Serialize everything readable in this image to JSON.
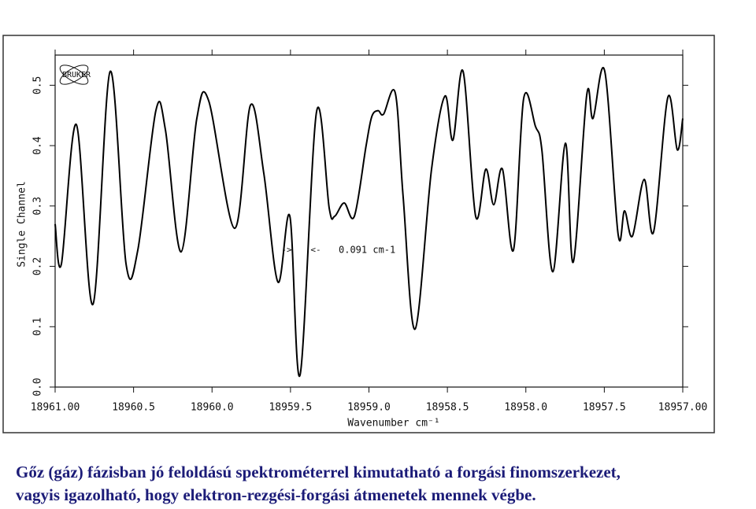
{
  "chart_data": {
    "type": "line",
    "logo_text": "BRUKER",
    "x_label": "Wavenumber cm⁻¹",
    "y_label": "Single Channel",
    "annotation": "0.091 cm-1",
    "annotation_arrows": [
      "->",
      "<-"
    ],
    "xlim": [
      18961,
      18957
    ],
    "ylim": [
      0,
      0.55
    ],
    "xticks": [
      {
        "value": 18961,
        "label": "18961.00"
      },
      18960.5,
      {
        "value": 18960,
        "label": "18960.0"
      },
      18959.5,
      {
        "value": 18959,
        "label": "18959.0"
      },
      18958.5,
      {
        "value": 18958,
        "label": "18958.0"
      },
      18957.5,
      {
        "value": 18957,
        "label": "18957.00"
      }
    ],
    "yticks": [
      {
        "value": 0,
        "label": "0.0"
      },
      0.1,
      0.2,
      0.3,
      0.4,
      0.5
    ],
    "x": [
      18961.0,
      18960.96,
      18960.865,
      18960.759,
      18960.649,
      18960.548,
      18960.473,
      18960.358,
      18960.297,
      18960.197,
      18960.097,
      18960.021,
      18959.856,
      18959.755,
      18959.67,
      18959.58,
      18959.504,
      18959.439,
      18959.334,
      18959.253,
      18959.218,
      18959.158,
      18959.093,
      18959.018,
      18958.982,
      18958.942,
      18958.907,
      18958.832,
      18958.782,
      18958.706,
      18958.601,
      18958.516,
      18958.465,
      18958.4,
      18958.32,
      18958.255,
      18958.205,
      18958.149,
      18958.079,
      18958.014,
      18957.939,
      18957.898,
      18957.828,
      18957.748,
      18957.698,
      18957.612,
      18957.572,
      18957.497,
      18957.412,
      18957.371,
      18957.321,
      18957.246,
      18957.186,
      18957.095,
      18957.035,
      18957.0
    ],
    "series": [
      {
        "color": "#000000",
        "values": [
          0.27,
          0.204,
          0.435,
          0.137,
          0.523,
          0.204,
          0.227,
          0.458,
          0.426,
          0.224,
          0.445,
          0.474,
          0.263,
          0.467,
          0.354,
          0.174,
          0.283,
          0.02,
          0.456,
          0.296,
          0.283,
          0.305,
          0.283,
          0.4,
          0.448,
          0.458,
          0.452,
          0.487,
          0.315,
          0.096,
          0.361,
          0.482,
          0.409,
          0.523,
          0.283,
          0.361,
          0.302,
          0.361,
          0.227,
          0.478,
          0.432,
          0.393,
          0.191,
          0.404,
          0.207,
          0.484,
          0.445,
          0.523,
          0.253,
          0.292,
          0.25,
          0.344,
          0.257,
          0.48,
          0.393,
          0.445
        ]
      }
    ]
  },
  "caption": [
    "Gőz (gáz) fázisban jó feloldású spektrométerrel kimutatható a forgási finomszerkezet,",
    "vagyis igazolható, hogy elektron-rezgési-forgási átmenetek mennek végbe."
  ]
}
